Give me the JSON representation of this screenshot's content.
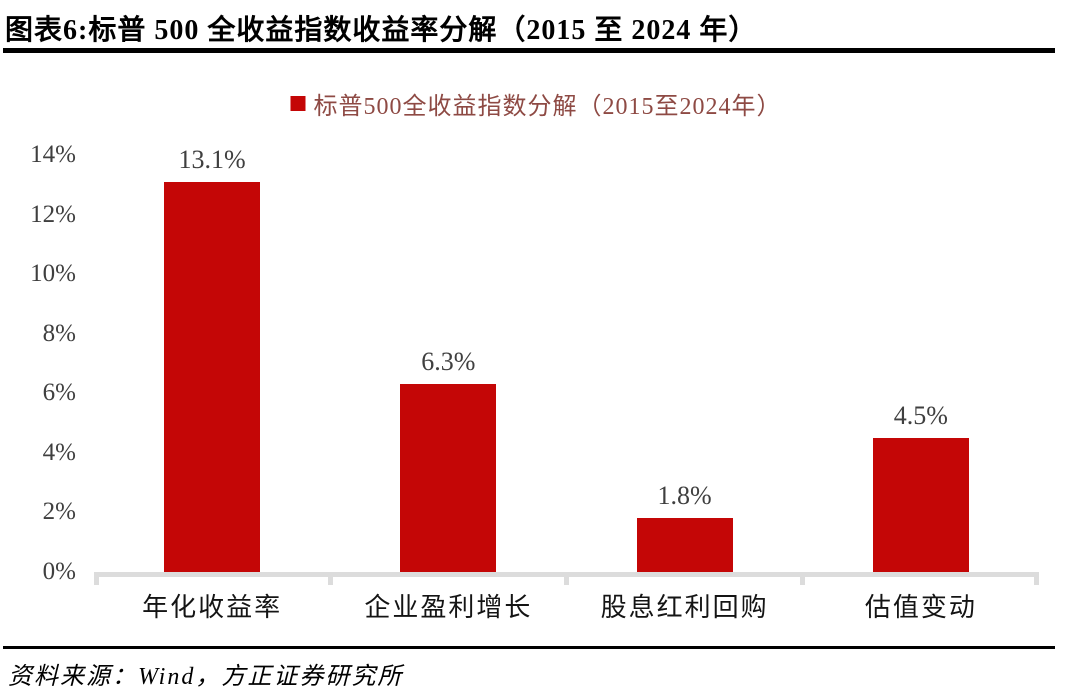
{
  "header": {
    "title": "图表6:标普 500 全收益指数收益率分解（2015 至 2024 年）"
  },
  "chart_data": {
    "type": "bar",
    "title": "标普500全收益指数分解（2015至2024年）",
    "legend_label": "标普500全收益指数分解（2015至2024年）",
    "legend_position": "top-center",
    "categories": [
      "年化收益率",
      "企业盈利增长",
      "股息红利回购",
      "估值变动"
    ],
    "values": [
      13.1,
      6.3,
      1.8,
      4.5
    ],
    "value_labels": [
      "13.1%",
      "6.3%",
      "1.8%",
      "4.5%"
    ],
    "y_tick_labels": [
      "0%",
      "2%",
      "4%",
      "6%",
      "8%",
      "10%",
      "12%",
      "14%"
    ],
    "ylim": [
      0,
      14
    ],
    "y_step": 2,
    "grid": false,
    "xlabel": "",
    "ylabel": "",
    "bar_color": "#c40606",
    "axis_line_color": "#dcdcdc",
    "value_label_color": "#3f3f3f",
    "y_tick_label_color": "#3f3f3f",
    "category_label_color": "#141414",
    "legend_marker_color": "#c40606",
    "legend_text_color": "#8e4a44"
  },
  "footer": {
    "source": "资料来源：Wind，方正证券研究所"
  }
}
